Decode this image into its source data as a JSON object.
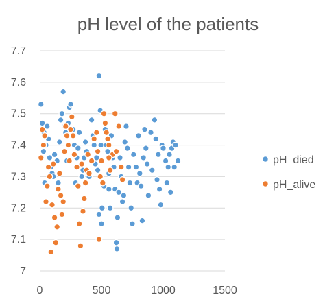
{
  "chart_data": {
    "type": "scatter",
    "title": "pH level of the patients",
    "xlabel": "",
    "ylabel": "",
    "xlim": [
      0,
      1500
    ],
    "ylim": [
      7.0,
      7.7
    ],
    "xticks": [
      0,
      500,
      1000,
      1500
    ],
    "yticks": [
      7.0,
      7.1,
      7.2,
      7.3,
      7.4,
      7.5,
      7.6,
      7.7
    ],
    "ytick_labels": [
      "7",
      "7.1",
      "7.2",
      "7.3",
      "7.4",
      "7.5",
      "7.6",
      "7.7"
    ],
    "grid": true,
    "legend_position": "right",
    "series": [
      {
        "name": "pH_died",
        "color": "#5B9BD5",
        "points": [
          [
            10,
            7.53
          ],
          [
            20,
            7.47
          ],
          [
            30,
            7.38
          ],
          [
            35,
            7.44
          ],
          [
            40,
            7.28
          ],
          [
            50,
            7.4
          ],
          [
            60,
            7.46
          ],
          [
            70,
            7.42
          ],
          [
            80,
            7.36
          ],
          [
            90,
            7.33
          ],
          [
            100,
            7.31
          ],
          [
            110,
            7.3
          ],
          [
            120,
            7.37
          ],
          [
            140,
            7.35
          ],
          [
            150,
            7.28
          ],
          [
            160,
            7.41
          ],
          [
            170,
            7.48
          ],
          [
            180,
            7.5
          ],
          [
            190,
            7.57
          ],
          [
            200,
            7.46
          ],
          [
            210,
            7.44
          ],
          [
            220,
            7.35
          ],
          [
            230,
            7.47
          ],
          [
            240,
            7.52
          ],
          [
            250,
            7.53
          ],
          [
            260,
            7.49
          ],
          [
            270,
            7.45
          ],
          [
            280,
            7.4
          ],
          [
            290,
            7.28
          ],
          [
            300,
            7.36
          ],
          [
            310,
            7.39
          ],
          [
            320,
            7.44
          ],
          [
            340,
            7.3
          ],
          [
            350,
            7.32
          ],
          [
            360,
            7.36
          ],
          [
            370,
            7.41
          ],
          [
            380,
            7.38
          ],
          [
            390,
            7.31
          ],
          [
            400,
            7.3
          ],
          [
            420,
            7.48
          ],
          [
            430,
            7.43
          ],
          [
            440,
            7.4
          ],
          [
            450,
            7.34
          ],
          [
            460,
            7.36
          ],
          [
            470,
            7.32
          ],
          [
            480,
            7.62
          ],
          [
            490,
            7.51
          ],
          [
            495,
            7.4
          ],
          [
            500,
            7.15
          ],
          [
            505,
            7.2
          ],
          [
            510,
            7.28
          ],
          [
            520,
            7.27
          ],
          [
            530,
            7.45
          ],
          [
            540,
            7.4
          ],
          [
            550,
            7.38
          ],
          [
            560,
            7.31
          ],
          [
            570,
            7.2
          ],
          [
            580,
            7.43
          ],
          [
            590,
            7.36
          ],
          [
            600,
            7.33
          ],
          [
            610,
            7.26
          ],
          [
            620,
            7.09
          ],
          [
            625,
            7.07
          ],
          [
            630,
            7.17
          ],
          [
            640,
            7.25
          ],
          [
            650,
            7.36
          ],
          [
            660,
            7.3
          ],
          [
            670,
            7.22
          ],
          [
            680,
            7.24
          ],
          [
            690,
            7.41
          ],
          [
            700,
            7.46
          ],
          [
            710,
            7.39
          ],
          [
            720,
            7.33
          ],
          [
            730,
            7.28
          ],
          [
            740,
            7.2
          ],
          [
            750,
            7.15
          ],
          [
            760,
            7.37
          ],
          [
            780,
            7.33
          ],
          [
            790,
            7.28
          ],
          [
            800,
            7.43
          ],
          [
            810,
            7.31
          ],
          [
            820,
            7.27
          ],
          [
            830,
            7.16
          ],
          [
            840,
            7.36
          ],
          [
            850,
            7.45
          ],
          [
            860,
            7.39
          ],
          [
            870,
            7.34
          ],
          [
            880,
            7.24
          ],
          [
            900,
            7.44
          ],
          [
            910,
            7.32
          ],
          [
            930,
            7.48
          ],
          [
            940,
            7.42
          ],
          [
            950,
            7.29
          ],
          [
            960,
            7.37
          ],
          [
            970,
            7.26
          ],
          [
            980,
            7.21
          ],
          [
            990,
            7.4
          ],
          [
            1000,
            7.39
          ],
          [
            1020,
            7.35
          ],
          [
            1030,
            7.28
          ],
          [
            1040,
            7.33
          ],
          [
            1050,
            7.37
          ],
          [
            1060,
            7.25
          ],
          [
            1070,
            7.39
          ],
          [
            1080,
            7.41
          ],
          [
            1090,
            7.33
          ],
          [
            1100,
            7.4
          ],
          [
            1120,
            7.35
          ],
          [
            480,
            7.18
          ],
          [
            560,
            7.26
          ]
        ]
      },
      {
        "name": "pH_alive",
        "color": "#ED7D31",
        "points": [
          [
            10,
            7.36
          ],
          [
            20,
            7.45
          ],
          [
            30,
            7.4
          ],
          [
            40,
            7.43
          ],
          [
            50,
            7.22
          ],
          [
            60,
            7.27
          ],
          [
            70,
            7.33
          ],
          [
            80,
            7.3
          ],
          [
            90,
            7.06
          ],
          [
            100,
            7.21
          ],
          [
            110,
            7.34
          ],
          [
            120,
            7.17
          ],
          [
            130,
            7.09
          ],
          [
            140,
            7.14
          ],
          [
            150,
            7.26
          ],
          [
            160,
            7.31
          ],
          [
            170,
            7.24
          ],
          [
            180,
            7.18
          ],
          [
            190,
            7.22
          ],
          [
            200,
            7.38
          ],
          [
            210,
            7.46
          ],
          [
            220,
            7.43
          ],
          [
            230,
            7.4
          ],
          [
            240,
            7.35
          ],
          [
            250,
            7.45
          ],
          [
            260,
            7.49
          ],
          [
            270,
            7.43
          ],
          [
            280,
            7.37
          ],
          [
            300,
            7.33
          ],
          [
            310,
            7.27
          ],
          [
            320,
            7.15
          ],
          [
            330,
            7.08
          ],
          [
            340,
            7.34
          ],
          [
            350,
            7.19
          ],
          [
            360,
            7.23
          ],
          [
            370,
            7.28
          ],
          [
            380,
            7.32
          ],
          [
            390,
            7.37
          ],
          [
            400,
            7.31
          ],
          [
            420,
            7.35
          ],
          [
            440,
            7.42
          ],
          [
            460,
            7.44
          ],
          [
            470,
            7.38
          ],
          [
            480,
            7.1
          ],
          [
            490,
            7.3
          ],
          [
            500,
            7.35
          ],
          [
            510,
            7.28
          ],
          [
            520,
            7.5
          ],
          [
            530,
            7.47
          ],
          [
            540,
            7.44
          ],
          [
            550,
            7.42
          ],
          [
            560,
            7.4
          ],
          [
            570,
            7.32
          ],
          [
            590,
            7.37
          ],
          [
            610,
            7.5
          ],
          [
            620,
            7.38
          ],
          [
            640,
            7.46
          ],
          [
            660,
            7.33
          ],
          [
            670,
            7.29
          ],
          [
            560,
            7.36
          ]
        ]
      }
    ]
  },
  "legend": {
    "items": [
      {
        "label": "pH_died",
        "color": "#5B9BD5"
      },
      {
        "label": "pH_alive",
        "color": "#ED7D31"
      }
    ]
  }
}
